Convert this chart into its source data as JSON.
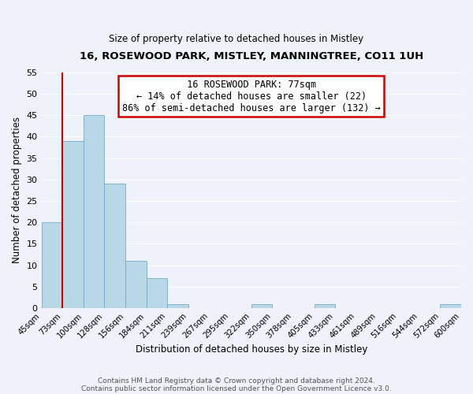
{
  "title": "16, ROSEWOOD PARK, MISTLEY, MANNINGTREE, CO11 1UH",
  "subtitle": "Size of property relative to detached houses in Mistley",
  "xlabel": "Distribution of detached houses by size in Mistley",
  "ylabel": "Number of detached properties",
  "footer1": "Contains HM Land Registry data © Crown copyright and database right 2024.",
  "footer2": "Contains public sector information licensed under the Open Government Licence v3.0.",
  "bin_labels": [
    "45sqm",
    "73sqm",
    "100sqm",
    "128sqm",
    "156sqm",
    "184sqm",
    "211sqm",
    "239sqm",
    "267sqm",
    "295sqm",
    "322sqm",
    "350sqm",
    "378sqm",
    "405sqm",
    "433sqm",
    "461sqm",
    "489sqm",
    "516sqm",
    "544sqm",
    "572sqm",
    "600sqm"
  ],
  "bar_values": [
    20,
    39,
    45,
    29,
    11,
    7,
    1,
    0,
    0,
    0,
    1,
    0,
    0,
    1,
    0,
    0,
    0,
    0,
    0,
    1
  ],
  "bar_color": "#b8d8e8",
  "bar_edgecolor": "#7aabcc",
  "ylim": [
    0,
    55
  ],
  "yticks": [
    0,
    5,
    10,
    15,
    20,
    25,
    30,
    35,
    40,
    45,
    50,
    55
  ],
  "vline_x": 1.0,
  "vline_color": "#cc0000",
  "annotation_title": "16 ROSEWOOD PARK: 77sqm",
  "annotation_line1": "← 14% of detached houses are smaller (22)",
  "annotation_line2": "86% of semi-detached houses are larger (132) →",
  "annotation_box_color": "#ffffff",
  "annotation_box_edgecolor": "#cc0000",
  "bg_color": "#eef2fb",
  "grid_color": "#ffffff"
}
